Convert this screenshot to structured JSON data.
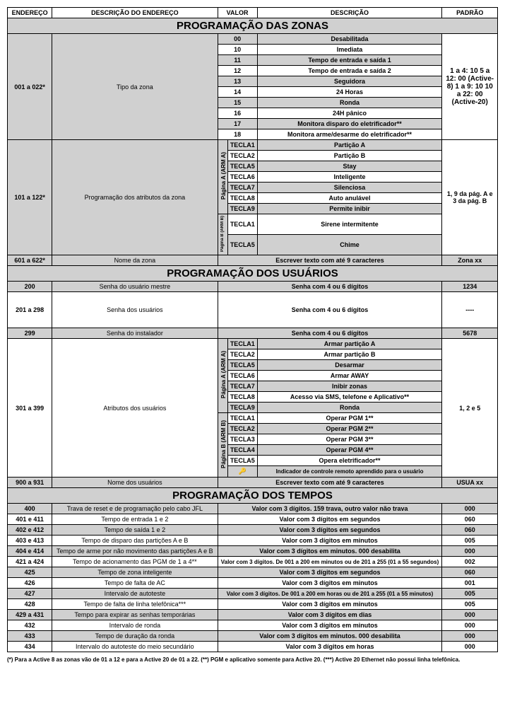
{
  "colWidths": {
    "endereco": 62,
    "descEnd": 230,
    "colRot": 14,
    "tecla": 41,
    "desc": 257,
    "padrao": 77
  },
  "headers": {
    "endereco": "ENDEREÇO",
    "descEnd": "DESCRIÇÃO DO ENDEREÇO",
    "valor": "VALOR",
    "desc": "DESCRIÇÃO",
    "padrao": "PADRÃO"
  },
  "section1": {
    "title": "PROGRAMAÇÃO DAS ZONAS"
  },
  "zonas": {
    "addr": "001 a 022*",
    "descEnd": "Tipo da zona",
    "rows": [
      {
        "v": "00",
        "d": "Desabilitada"
      },
      {
        "v": "10",
        "d": "Imediata"
      },
      {
        "v": "11",
        "d": "Tempo de entrada e saída 1"
      },
      {
        "v": "12",
        "d": "Tempo de entrada e saída 2"
      },
      {
        "v": "13",
        "d": "Seguidora"
      },
      {
        "v": "14",
        "d": "24 Horas"
      },
      {
        "v": "15",
        "d": "Ronda"
      },
      {
        "v": "16",
        "d": "24H pânico"
      },
      {
        "v": "17",
        "d": "Monitora disparo do eletrificador**"
      },
      {
        "v": "18",
        "d": "Monitora arme/desarme do eletrificador**"
      }
    ],
    "padrao": "1 a 4: 10  5 a 12: 00 (Active-8)  1 a 9: 10  10 a 22: 00 (Active-20)"
  },
  "atributos": {
    "addr": "101 a 122*",
    "descEnd": "Programação dos atributos da zona",
    "groupA": "Página A (ARM A)",
    "groupB": "Página B (ARM B)",
    "rowsA": [
      {
        "t": "TECLA1",
        "d": "Partição A"
      },
      {
        "t": "TECLA2",
        "d": "Partição B"
      },
      {
        "t": "TECLA5",
        "d": "Stay"
      },
      {
        "t": "TECLA6",
        "d": "Inteligente"
      },
      {
        "t": "TECLA7",
        "d": "Silenciosa"
      },
      {
        "t": "TECLA8",
        "d": "Auto anulável"
      },
      {
        "t": "TECLA9",
        "d": "Permite inibir"
      }
    ],
    "rowsB": [
      {
        "t": "TECLA1",
        "d": "Sirene intermitente"
      },
      {
        "t": "TECLA5",
        "d": "Chime"
      }
    ],
    "padrao": "1, 9 da pág. A e 3 da pág. B"
  },
  "nomeZona": {
    "addr": "601 a 622*",
    "descEnd": "Nome da zona",
    "desc": "Escrever texto com até 9 caracteres",
    "padrao": "Zona xx"
  },
  "section2": {
    "title": "PROGRAMAÇÃO DOS USUÁRIOS"
  },
  "usr200": {
    "addr": "200",
    "descEnd": "Senha do usuário mestre",
    "desc": "Senha com 4 ou 6 dígitos",
    "padrao": "1234"
  },
  "usr201": {
    "addr": "201 a 298",
    "descEnd": "Senha dos usuários",
    "desc": "Senha com 4 ou 6 dígitos",
    "padrao": "----"
  },
  "usr299": {
    "addr": "299",
    "descEnd": "Senha do instalador",
    "desc": "Senha com 4 ou 6 dígitos",
    "padrao": "5678"
  },
  "usrAttr": {
    "addr": "301 a 399",
    "descEnd": "Atributos dos usuários",
    "groupA": "Página A (ARM A)",
    "groupB": "Página B (ARM B)",
    "rowsA": [
      {
        "t": "TECLA1",
        "d": "Armar partição A"
      },
      {
        "t": "TECLA2",
        "d": "Armar partição B"
      },
      {
        "t": "TECLA5",
        "d": "Desarmar"
      },
      {
        "t": "TECLA6",
        "d": "Armar AWAY"
      },
      {
        "t": "TECLA7",
        "d": "Inibir zonas"
      },
      {
        "t": "TECLA8",
        "d": "Acesso via SMS, telefone e Aplicativo**"
      },
      {
        "t": "TECLA9",
        "d": "Ronda"
      }
    ],
    "rowsB": [
      {
        "t": "TECLA1",
        "d": "Operar PGM 1**"
      },
      {
        "t": "TECLA2",
        "d": "Operar PGM 2**"
      },
      {
        "t": "TECLA3",
        "d": "Operar PGM 3**"
      },
      {
        "t": "TECLA4",
        "d": "Operar PGM 4**"
      },
      {
        "t": "TECLA5",
        "d": "Opera eletrificador**"
      },
      {
        "t": "🔑",
        "d": "Indicador de controle remoto aprendido para o usuário",
        "tiny": true
      }
    ],
    "padrao": "1, 2 e 5"
  },
  "nomeUsr": {
    "addr": "900 a 931",
    "descEnd": "Nome dos usuários",
    "desc": "Escrever texto com até 9 caracteres",
    "padrao": "USUA xx"
  },
  "section3": {
    "title": "PROGRAMAÇÃO DOS TEMPOS"
  },
  "tempos": [
    {
      "a": "400",
      "e": "Trava de reset e de programação pelo cabo JFL",
      "d": "Valor com 3 dígitos. 159 trava, outro valor não trava",
      "p": "000"
    },
    {
      "a": "401 e 411",
      "e": "Tempo de entrada 1 e 2",
      "d": "Valor com 3 dígitos em segundos",
      "p": "060"
    },
    {
      "a": "402 e 412",
      "e": "Tempo de saída 1 e 2",
      "d": "Valor com 3 dígitos em segundos",
      "p": "060"
    },
    {
      "a": "403 e 413",
      "e": "Tempo de disparo das partições A e B",
      "d": "Valor com 3 dígitos em minutos",
      "p": "005"
    },
    {
      "a": "404 e 414",
      "e": "Tempo de arme por não movimento das partições A e B",
      "d": "Valor com 3 dígitos em minutos. 000 desabilita",
      "p": "000"
    },
    {
      "a": "421 a 424",
      "e": "Tempo de acionamento das PGM de 1 a 4**",
      "d": "Valor com 3 dígitos. De 001 a 200 em minutos ou de 201 a 255 (01 a 55 segundos)",
      "p": "002",
      "tiny": true
    },
    {
      "a": "425",
      "e": "Tempo de zona inteligente",
      "d": "Valor com 3 dígitos em segundos",
      "p": "060"
    },
    {
      "a": "426",
      "e": "Tempo de falta de AC",
      "d": "Valor com 3 dígitos em minutos",
      "p": "001"
    },
    {
      "a": "427",
      "e": "Intervalo de autoteste",
      "d": "Valor com 3 dígitos. De 001 a 200 em horas ou de 201 a 255 (01 a 55 minutos)",
      "p": "005",
      "tiny": true
    },
    {
      "a": "428",
      "e": "Tempo de falta de linha telefônica***",
      "d": "Valor com 3 dígitos em minutos",
      "p": "005"
    },
    {
      "a": "429 a 431",
      "e": "Tempo para expirar as senhas temporárias",
      "d": "Valor com 3 dígitos em dias",
      "p": "000"
    },
    {
      "a": "432",
      "e": "Intervalo de ronda",
      "d": "Valor com 3 dígitos em minutos",
      "p": "000"
    },
    {
      "a": "433",
      "e": "Tempo de duração da ronda",
      "d": "Valor com 3 dígitos em minutos. 000 desabilita",
      "p": "000"
    },
    {
      "a": "434",
      "e": "Intervalo do autoteste do meio secundário",
      "d": "Valor com 3 dígitos em horas",
      "p": "000"
    }
  ],
  "footnotes": "(*) Para a Active 8 as zonas vão de 01 a 12 e para a Active 20 de 01 a 22. (**) PGM e aplicativo somente para Active 20. (***) Active 20 Ethernet não possui linha telefônica."
}
